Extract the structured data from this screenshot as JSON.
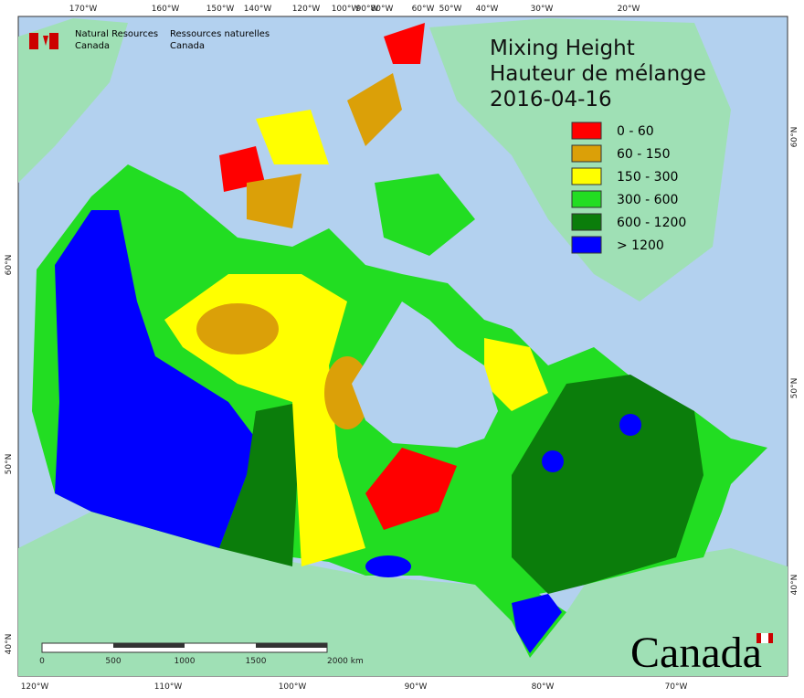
{
  "header": {
    "agency_en": [
      "Natural Resources",
      "Canada"
    ],
    "agency_fr": [
      "Ressources naturelles",
      "Canada"
    ]
  },
  "title": [
    "Mixing Height",
    "Hauteur de mélange",
    "2016-04-16"
  ],
  "legend": [
    {
      "label": "0 - 60",
      "color": "#ff0000"
    },
    {
      "label": "60 - 150",
      "color": "#dba008"
    },
    {
      "label": "150 - 300",
      "color": "#ffff00"
    },
    {
      "label": "300 - 600",
      "color": "#22dd22"
    },
    {
      "label": "600 - 1200",
      "color": "#0b7d0b"
    },
    {
      "label": "> 1200",
      "color": "#0000ff"
    }
  ],
  "graticule": {
    "top": [
      "170°W",
      "160°W",
      "150°W",
      "140°W",
      "120°W",
      "100°W",
      "90°W",
      "80°W",
      "60°W",
      "50°W",
      "40°W",
      "30°W",
      "20°W"
    ],
    "bottom": [
      "120°W",
      "110°W",
      "100°W",
      "90°W",
      "80°W",
      "70°W"
    ],
    "left": [
      "60°N",
      "50°N",
      "40°N"
    ],
    "right": [
      "60°N",
      "50°N",
      "40°N"
    ]
  },
  "scale": {
    "labels": [
      "0",
      "500",
      "1000",
      "1500",
      "2000 km"
    ]
  },
  "wordmark": "Canada"
}
